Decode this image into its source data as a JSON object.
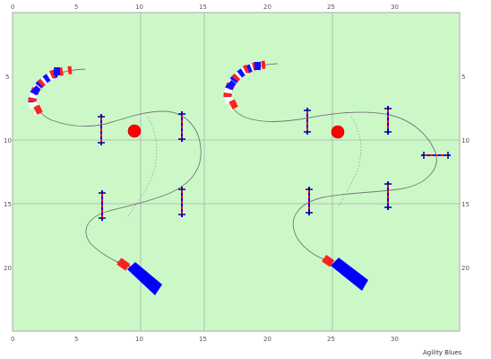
{
  "credit": "Agility Blues",
  "colors": {
    "field": "#ccf8c8",
    "grid": "#a9b0aa",
    "path": "#777777",
    "jump_red": "#ff0000",
    "jump_blue": "#0000ff",
    "tunnel_red": "#ff2020",
    "tunnel_white": "#ffffff",
    "tunnel_blue": "#1010ff",
    "table_red": "#ff0000",
    "pole_post": "#000088"
  },
  "axis": {
    "top_labels": [
      "0",
      "5",
      "10",
      "15",
      "20",
      "25",
      "30"
    ],
    "bottom_labels": [
      "0",
      "5",
      "10",
      "15",
      "20",
      "25",
      "30"
    ],
    "left_labels": [
      "5",
      "10",
      "15",
      "20"
    ],
    "right_labels": [
      "5",
      "10",
      "15",
      "20"
    ]
  },
  "courses": [
    {
      "name": "left",
      "tunnel": "curved",
      "table": "red-circle",
      "chute": "blue",
      "jumps": 4
    },
    {
      "name": "right",
      "tunnel": "curved",
      "table": "red-circle",
      "chute": "blue",
      "jumps": 5
    }
  ]
}
